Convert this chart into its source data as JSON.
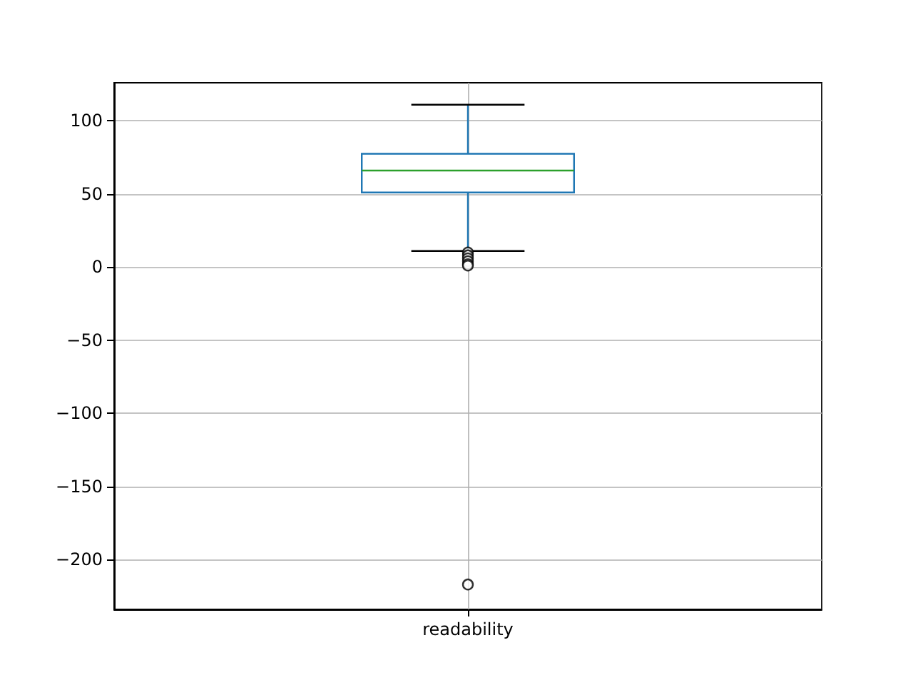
{
  "chart_data": {
    "type": "box",
    "categories": [
      "readability"
    ],
    "boxes": [
      {
        "low": 11,
        "q1": 51,
        "median": 66,
        "q3": 77.5,
        "high": 111,
        "outliers": [
          10,
          8,
          6,
          4,
          2,
          1,
          -217
        ]
      }
    ],
    "color": "#1f77b4",
    "ylim": [
      -234,
      126
    ],
    "yticks": [
      -200,
      -150,
      -100,
      -50,
      0,
      50,
      100
    ],
    "grid": true,
    "marker": "circle"
  }
}
